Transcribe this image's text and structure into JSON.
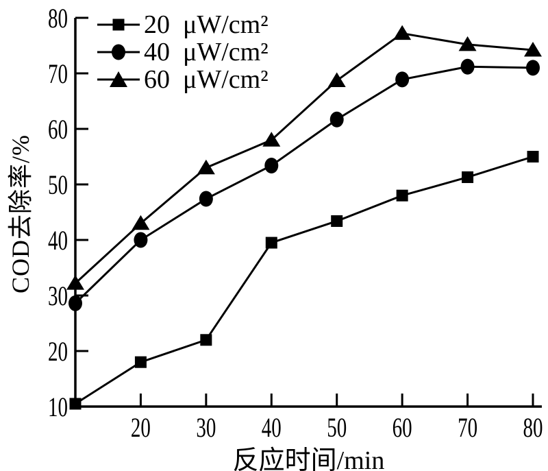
{
  "figure": {
    "kind": "scientific-line-chart",
    "background": "#ffffff",
    "ink_color": "#000000"
  },
  "chart_data": {
    "type": "line",
    "title": "",
    "xlabel": "反应时间/min",
    "ylabel": "COD去除率/%",
    "x": [
      10,
      20,
      30,
      40,
      50,
      60,
      70,
      80
    ],
    "series": [
      {
        "label": "20  μW/cm²",
        "marker": "square",
        "values": [
          10.5,
          18.0,
          22.0,
          39.5,
          43.4,
          48.0,
          51.3,
          55.0
        ]
      },
      {
        "label": "40  μW/cm²",
        "marker": "circle",
        "values": [
          28.6,
          40.0,
          47.4,
          53.4,
          61.7,
          68.9,
          71.2,
          71.0
        ]
      },
      {
        "label": "60  μW/cm²",
        "marker": "triangle",
        "values": [
          32.2,
          43.0,
          53.0,
          58.0,
          68.7,
          77.2,
          75.2,
          74.2
        ]
      }
    ],
    "xlim": [
      10,
      81.3
    ],
    "ylim": [
      10,
      80
    ],
    "x_ticks": [
      20,
      30,
      40,
      50,
      60,
      70,
      80
    ],
    "y_ticks": [
      10,
      20,
      30,
      40,
      50,
      60,
      70,
      80
    ],
    "grid": false,
    "legend_position": "top-left",
    "line_color": "#000000"
  }
}
